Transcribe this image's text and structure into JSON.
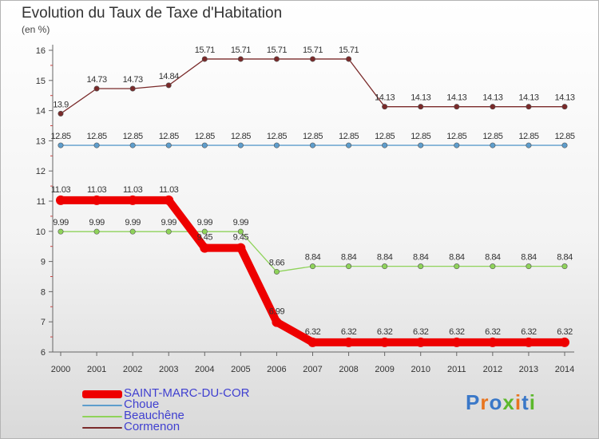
{
  "chart_data": {
    "type": "line",
    "title": "Evolution du Taux de Taxe d'Habitation",
    "subtitle": "(en %)",
    "xlabel": "",
    "ylabel": "",
    "categories": [
      "2000",
      "2001",
      "2002",
      "2003",
      "2004",
      "2005",
      "2006",
      "2007",
      "2008",
      "2009",
      "2010",
      "2011",
      "2012",
      "2013",
      "2014"
    ],
    "ylim": [
      6,
      16
    ],
    "yticks": [
      "6",
      "7",
      "8",
      "9",
      "10",
      "11",
      "12",
      "13",
      "14",
      "15",
      "16"
    ],
    "legend_position": "bottom-left",
    "series": [
      {
        "name": "Cormenon",
        "color": "#7a2a2a",
        "values": [
          13.9,
          14.73,
          14.73,
          14.84,
          15.71,
          15.71,
          15.71,
          15.71,
          15.71,
          14.13,
          14.13,
          14.13,
          14.13,
          14.13,
          14.13
        ],
        "labels": [
          "13.9",
          "14.73",
          "14.73",
          "14.84",
          "15.71",
          "15.71",
          "15.71",
          "15.71",
          "15.71",
          "14.13",
          "14.13",
          "14.13",
          "14.13",
          "14.13",
          "14.13"
        ]
      },
      {
        "name": "Choue",
        "color": "#5e9dcc",
        "values": [
          12.85,
          12.85,
          12.85,
          12.85,
          12.85,
          12.85,
          12.85,
          12.85,
          12.85,
          12.85,
          12.85,
          12.85,
          12.85,
          12.85,
          12.85
        ],
        "labels": [
          "12.85",
          "12.85",
          "12.85",
          "12.85",
          "12.85",
          "12.85",
          "12.85",
          "12.85",
          "12.85",
          "12.85",
          "12.85",
          "12.85",
          "12.85",
          "12.85",
          "12.85"
        ]
      },
      {
        "name": "Beauchêne",
        "color": "#8fd35a",
        "values": [
          9.99,
          9.99,
          9.99,
          9.99,
          9.99,
          9.99,
          8.66,
          8.84,
          8.84,
          8.84,
          8.84,
          8.84,
          8.84,
          8.84,
          8.84
        ],
        "labels": [
          "9.99",
          "9.99",
          "9.99",
          "9.99",
          "9.99",
          "9.99",
          "8.66",
          "8.84",
          "8.84",
          "8.84",
          "8.84",
          "8.84",
          "8.84",
          "8.84",
          "8.84"
        ]
      },
      {
        "name": "SAINT-MARC-DU-COR",
        "color": "#ee0000",
        "values": [
          11.03,
          11.03,
          11.03,
          11.03,
          9.45,
          9.45,
          6.99,
          6.32,
          6.32,
          6.32,
          6.32,
          6.32,
          6.32,
          6.32,
          6.32
        ],
        "labels": [
          "11.03",
          "11.03",
          "11.03",
          "11.03",
          "9.45",
          "9.45",
          "6.99",
          "6.32",
          "6.32",
          "6.32",
          "6.32",
          "6.32",
          "6.32",
          "6.32",
          "6.32"
        ]
      }
    ]
  },
  "legend": [
    {
      "label": "SAINT-MARC-DU-COR",
      "color": "#ee0000"
    },
    {
      "label": "Choue",
      "color": "#5e9dcc"
    },
    {
      "label": "Beauchêne",
      "color": "#8fd35a"
    },
    {
      "label": "Cormenon",
      "color": "#7a2a2a"
    }
  ],
  "logo": {
    "letters": [
      "P",
      "r",
      "o",
      "x",
      "i",
      "t",
      "i"
    ],
    "colors": [
      "#3a78c8",
      "#e8741e",
      "#3a78c8",
      "#5cb82c",
      "#e8741e",
      "#3a78c8",
      "#5cb82c"
    ]
  }
}
